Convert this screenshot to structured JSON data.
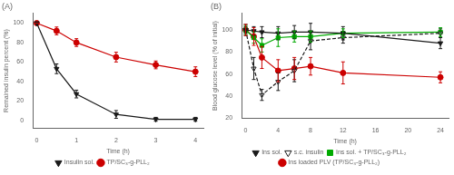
{
  "chart_data": [
    {
      "type": "line",
      "title": "(A)",
      "xlabel": "Time (h)",
      "ylabel": "Remained insulin percent (%)",
      "xlim": [
        -0.1,
        4.2
      ],
      "ylim": [
        -8,
        110
      ],
      "xticks": [
        0,
        1,
        2,
        3,
        4
      ],
      "yticks": [
        0,
        20,
        40,
        60,
        80,
        100
      ],
      "grid": false,
      "legend": "bottom",
      "series": [
        {
          "name": "Insulin sol.",
          "color": "#1a1a1a",
          "marker": "triangle_down",
          "line_style": "solid",
          "x": [
            0,
            0.5,
            1,
            2,
            3,
            4
          ],
          "values": [
            100,
            53,
            27,
            6,
            1,
            1
          ],
          "errors": [
            0,
            5,
            4,
            4,
            2,
            2
          ]
        },
        {
          "name": "TP/SC₃-g-PLL₂",
          "color": "#cc0000",
          "marker": "circle",
          "line_style": "solid",
          "x": [
            0,
            0.5,
            1,
            2,
            3,
            4
          ],
          "values": [
            100,
            92,
            80,
            65,
            57,
            50
          ],
          "errors": [
            0,
            4,
            4,
            5,
            4,
            5
          ]
        }
      ]
    },
    {
      "type": "line",
      "title": "(B)",
      "xlabel": "Time (h)",
      "ylabel": "Blood glucose level (% of initial)",
      "xlim": [
        -0.5,
        25
      ],
      "ylim": [
        20,
        115
      ],
      "xticks": [
        0,
        4,
        8,
        12,
        16,
        20,
        24
      ],
      "yticks": [
        20,
        40,
        60,
        80,
        100
      ],
      "grid": false,
      "legend": "bottom",
      "series": [
        {
          "name": "Ins sol.",
          "color": "#1a1a1a",
          "marker": "triangle_down",
          "line_style": "solid",
          "x": [
            0,
            1,
            2,
            4,
            6,
            8,
            12,
            24
          ],
          "values": [
            100,
            99,
            98,
            97,
            98,
            98,
            97,
            88
          ],
          "errors": [
            3,
            4,
            5,
            6,
            6,
            8,
            6,
            5
          ]
        },
        {
          "name": "s.c. insulin",
          "color": "#1a1a1a",
          "marker": "triangle_down_open",
          "line_style": "dashed",
          "x": [
            0,
            1,
            2,
            4,
            6,
            8,
            12,
            24
          ],
          "values": [
            100,
            65,
            41,
            53,
            63,
            90,
            93,
            97
          ],
          "errors": [
            5,
            10,
            5,
            8,
            10,
            8,
            5,
            4
          ]
        },
        {
          "name": "Ins sol. + TP/SC₃-g-PLL₂",
          "color": "#00aa00",
          "marker": "square",
          "line_style": "solid",
          "x": [
            0,
            1,
            2,
            4,
            6,
            8,
            12,
            24
          ],
          "values": [
            100,
            93,
            86,
            93,
            94,
            94,
            97,
            98
          ],
          "errors": [
            4,
            5,
            6,
            8,
            5,
            5,
            4,
            4
          ]
        },
        {
          "name": "Ins loaded PLV (TP/SC₃-g-PLL₂)",
          "color": "#cc0000",
          "marker": "circle",
          "line_style": "solid",
          "x": [
            0,
            1,
            2,
            4,
            6,
            8,
            12,
            24
          ],
          "values": [
            100,
            94,
            75,
            63,
            65,
            67,
            61,
            57
          ],
          "errors": [
            5,
            8,
            10,
            10,
            10,
            8,
            10,
            5
          ]
        }
      ]
    }
  ]
}
